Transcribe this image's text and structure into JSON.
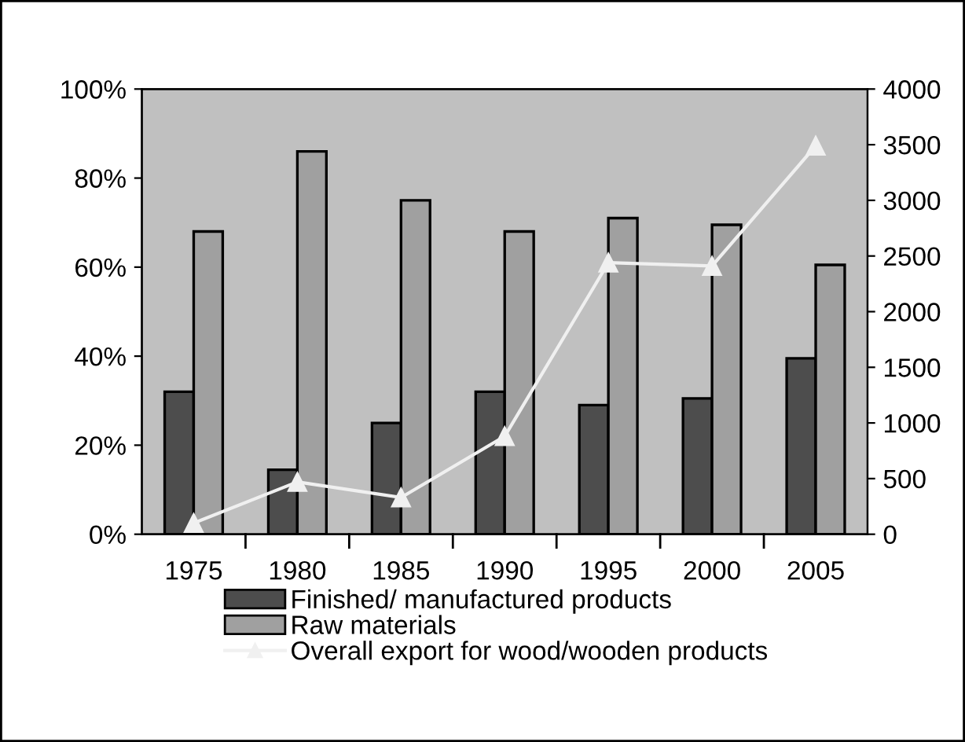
{
  "chart_data": {
    "type": "bar",
    "categories": [
      "1975",
      "1980",
      "1985",
      "1990",
      "1995",
      "2000",
      "2005"
    ],
    "series": [
      {
        "name": "Finished/ manufactured products",
        "color": "#4d4d4d",
        "values": [
          32,
          14.5,
          25,
          32,
          29,
          30.5,
          39.5
        ]
      },
      {
        "name": "Raw materials",
        "color": "#a0a0a0",
        "values": [
          68,
          86,
          75,
          68,
          71,
          69.5,
          60.5
        ]
      },
      {
        "name": "Overall export for wood/wooden products",
        "type": "line",
        "axis": "y2",
        "color": "#f0f0f0",
        "marker": "triangle",
        "values": [
          100,
          470,
          330,
          880,
          2440,
          2410,
          3490
        ]
      }
    ],
    "ylim": [
      0,
      100
    ],
    "yticks": [
      {
        "value": 0,
        "label": "0%"
      },
      {
        "value": 20,
        "label": "20%"
      },
      {
        "value": 40,
        "label": "40%"
      },
      {
        "value": 60,
        "label": "60%"
      },
      {
        "value": 80,
        "label": "80%"
      },
      {
        "value": 100,
        "label": "100%"
      }
    ],
    "y2lim": [
      0,
      4000
    ],
    "y2ticks": [
      0,
      500,
      1000,
      1500,
      2000,
      2500,
      3000,
      3500,
      4000
    ],
    "legend": "bottom",
    "grid": false
  }
}
